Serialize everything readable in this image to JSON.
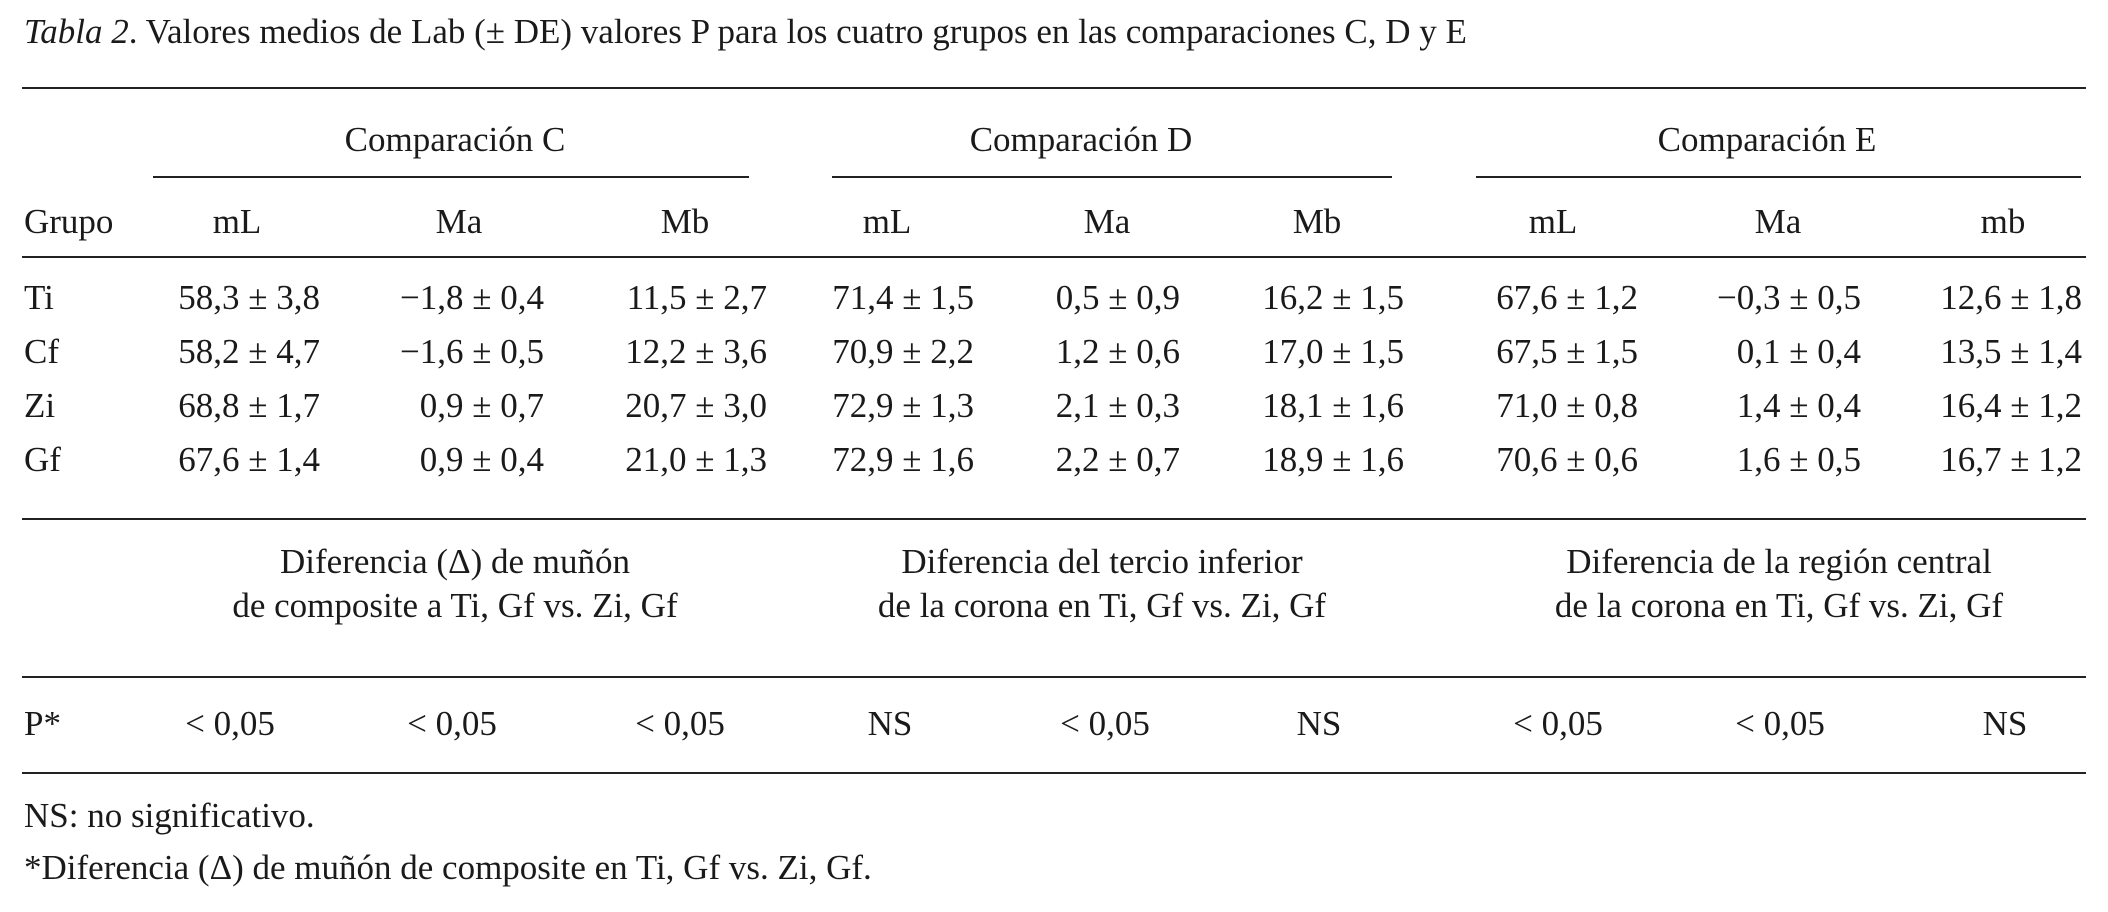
{
  "caption": {
    "label": "Tabla 2",
    "text": ". Valores medios de Lab (± DE) valores P para los cuatro grupos en las comparaciones C, D y E"
  },
  "comparisons": [
    "Comparación C",
    "Comparación D",
    "Comparación E"
  ],
  "columns": {
    "group_header": "Grupo",
    "labels": [
      "mL",
      "Ma",
      "Mb",
      "mL",
      "Ma",
      "Mb",
      "mL",
      "Ma",
      "mb"
    ]
  },
  "rows": [
    {
      "group": "Ti",
      "values": [
        "58,3 ± 3,8",
        "−1,8 ± 0,4",
        "11,5 ± 2,7",
        "71,4 ± 1,5",
        "0,5 ± 0,9",
        "16,2 ± 1,5",
        "67,6 ± 1,2",
        "−0,3 ± 0,5",
        "12,6 ± 1,8"
      ]
    },
    {
      "group": "Cf",
      "values": [
        "58,2 ± 4,7",
        "−1,6 ± 0,5",
        "12,2 ± 3,6",
        "70,9 ± 2,2",
        "1,2 ± 0,6",
        "17,0 ± 1,5",
        "67,5 ± 1,5",
        "0,1 ± 0,4",
        "13,5 ± 1,4"
      ]
    },
    {
      "group": "Zi",
      "values": [
        "68,8 ± 1,7",
        "0,9 ± 0,7",
        "20,7 ± 3,0",
        "72,9 ± 1,3",
        "2,1 ± 0,3",
        "18,1 ± 1,6",
        "71,0 ± 0,8",
        "1,4 ± 0,4",
        "16,4 ± 1,2"
      ]
    },
    {
      "group": "Gf",
      "values": [
        "67,6 ± 1,4",
        "0,9 ± 0,4",
        "21,0 ± 1,3",
        "72,9 ± 1,6",
        "2,2 ± 0,7",
        "18,9 ± 1,6",
        "70,6 ± 0,6",
        "1,6 ± 0,5",
        "16,7 ± 1,2"
      ]
    }
  ],
  "differences": [
    {
      "line1": "Diferencia (Δ) de muñón",
      "line2": "de composite a Ti, Gf vs. Zi, Gf"
    },
    {
      "line1": "Diferencia del tercio inferior",
      "line2": "de la corona en Ti, Gf vs. Zi, Gf"
    },
    {
      "line1": "Diferencia de la región central",
      "line2": "de la corona en Ti, Gf vs. Zi, Gf"
    }
  ],
  "p_row": {
    "label": "P*",
    "values": [
      "< 0,05",
      "< 0,05",
      "< 0,05",
      "NS",
      "< 0,05",
      "NS",
      "< 0,05",
      "< 0,05",
      "NS"
    ]
  },
  "notes": [
    "NS: no significativo.",
    "*Diferencia (Δ) de muñón de composite en Ti, Gf vs. Zi, Gf."
  ]
}
